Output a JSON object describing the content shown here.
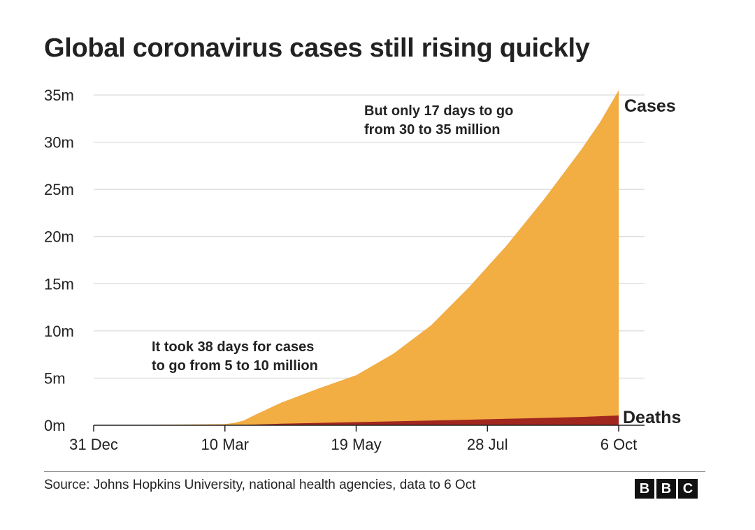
{
  "chart_data": {
    "type": "area",
    "title": "Global coronavirus cases still rising quickly",
    "xlabel": "",
    "ylabel": "",
    "x_ticks": [
      "31 Dec",
      "10 Mar",
      "19 May",
      "28 Jul",
      "6 Oct"
    ],
    "x_range_days": [
      0,
      280
    ],
    "y_ticks": [
      "0m",
      "5m",
      "10m",
      "15m",
      "20m",
      "25m",
      "30m",
      "35m"
    ],
    "ylim": [
      0,
      35
    ],
    "y_unit": "million",
    "series": [
      {
        "name": "Cases",
        "color": "#f2ad43",
        "points": [
          [
            0,
            0
          ],
          [
            30,
            0.05
          ],
          [
            60,
            0.1
          ],
          [
            70,
            0.12
          ],
          [
            75,
            0.25
          ],
          [
            80,
            0.5
          ],
          [
            85,
            1.0
          ],
          [
            100,
            2.4
          ],
          [
            120,
            3.9
          ],
          [
            140,
            5.3
          ],
          [
            160,
            7.6
          ],
          [
            180,
            10.6
          ],
          [
            200,
            14.6
          ],
          [
            220,
            19.0
          ],
          [
            240,
            23.9
          ],
          [
            260,
            29.2
          ],
          [
            270,
            32.1
          ],
          [
            280,
            35.5
          ]
        ]
      },
      {
        "name": "Deaths",
        "color": "#a1261e",
        "points": [
          [
            0,
            0
          ],
          [
            60,
            0.003
          ],
          [
            80,
            0.03
          ],
          [
            100,
            0.17
          ],
          [
            140,
            0.33
          ],
          [
            180,
            0.5
          ],
          [
            220,
            0.68
          ],
          [
            260,
            0.88
          ],
          [
            280,
            1.04
          ]
        ]
      }
    ],
    "annotations": [
      {
        "id": "slow",
        "lines": [
          "It took 38 days for cases",
          "to go from 5 to 10 million"
        ]
      },
      {
        "id": "fast",
        "lines": [
          "But only 17 days to go",
          "from 30 to 35 million"
        ]
      }
    ]
  },
  "source": "Source: Johns Hopkins University, national health agencies, data to 6 Oct",
  "logo": {
    "letters": [
      "B",
      "B",
      "C"
    ]
  }
}
